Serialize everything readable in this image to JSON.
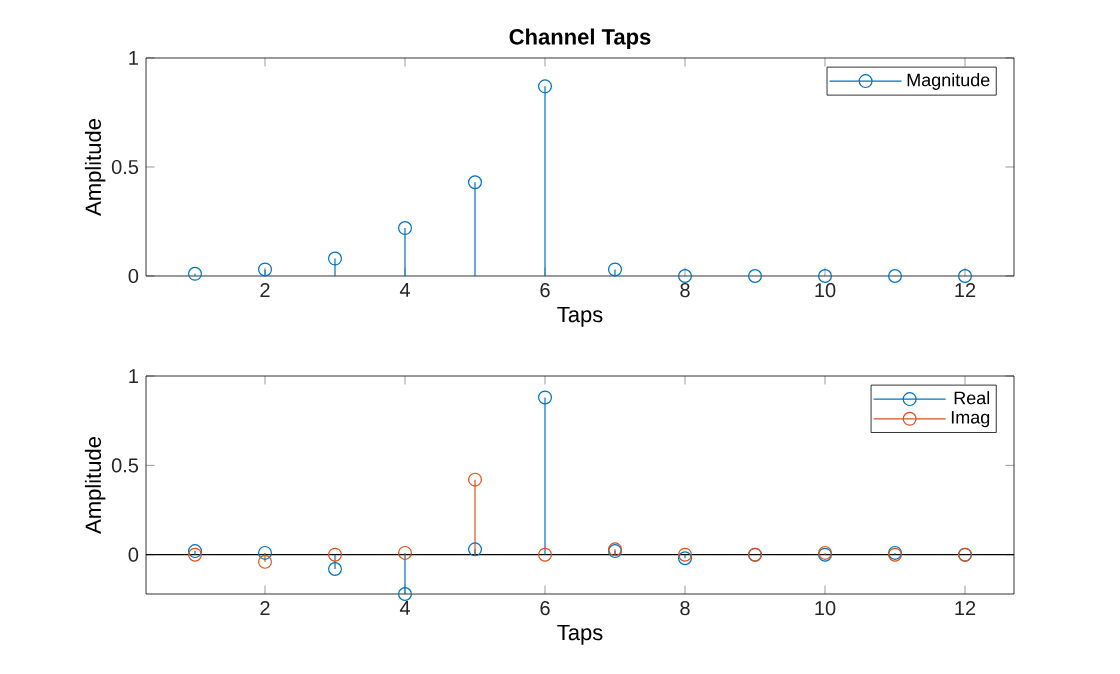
{
  "chart_data": [
    {
      "type": "lollipop",
      "title": "Channel Taps",
      "xlabel": "Taps",
      "ylabel": "Amplitude",
      "x": [
        1,
        2,
        3,
        4,
        5,
        6,
        7,
        8,
        9,
        10,
        11,
        12
      ],
      "xlim": [
        0.3,
        12.7
      ],
      "ylim": [
        0,
        1
      ],
      "xticks": [
        2,
        4,
        6,
        8,
        10,
        12
      ],
      "yticks": [
        0,
        0.5,
        1
      ],
      "legend": "top right",
      "marker": "circle",
      "series": [
        {
          "name": "Magnitude",
          "color": "#0072bd",
          "values": [
            0.01,
            0.03,
            0.08,
            0.22,
            0.43,
            0.87,
            0.03,
            0,
            0,
            0,
            0,
            0
          ]
        }
      ]
    },
    {
      "type": "lollipop",
      "xlabel": "Taps",
      "ylabel": "Amplitude",
      "x": [
        1,
        2,
        3,
        4,
        5,
        6,
        7,
        8,
        9,
        10,
        11,
        12
      ],
      "xlim": [
        0.3,
        12.7
      ],
      "ylim": [
        -0.22,
        1
      ],
      "xticks": [
        2,
        4,
        6,
        8,
        10,
        12
      ],
      "yticks": [
        0,
        0.5,
        1
      ],
      "legend": "top right",
      "marker": "circle",
      "ref_lines": [
        {
          "axis": "y",
          "value": 0,
          "color": "#000000"
        }
      ],
      "series": [
        {
          "name": "Real",
          "color": "#0072bd",
          "values": [
            0.02,
            0.01,
            -0.08,
            -0.22,
            0.03,
            0.88,
            0.02,
            -0.02,
            0,
            0,
            0.01,
            0
          ]
        },
        {
          "name": "Imag",
          "color": "#d95319",
          "values": [
            0,
            -0.04,
            0,
            0.01,
            0.42,
            0,
            0.03,
            0,
            0,
            0.01,
            0,
            0
          ]
        }
      ]
    }
  ]
}
